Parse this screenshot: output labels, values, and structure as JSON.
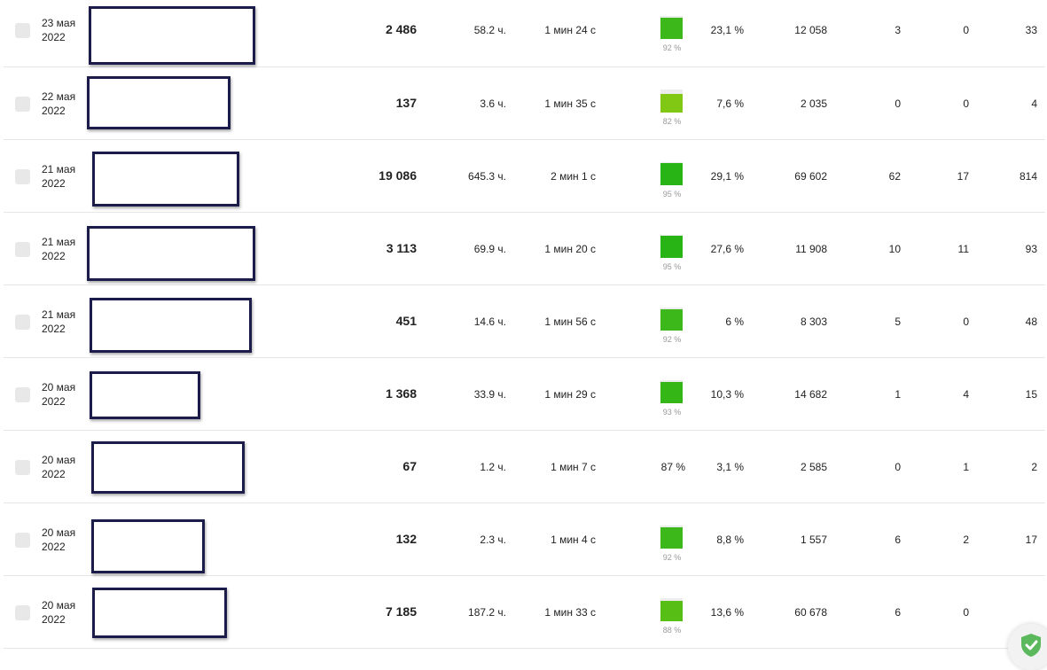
{
  "rows": [
    {
      "date_day": "23 мая",
      "date_year": "2022",
      "views": "2 486",
      "hours": "58.2 ч.",
      "avg": "1 мин 24 с",
      "quality_value": 92,
      "quality_label": "92 %",
      "quality_color": "#3db81a",
      "ctr": "23,1 %",
      "impressions": "12 058",
      "col_a": "3",
      "col_b": "0",
      "col_c": "33"
    },
    {
      "date_day": "22 мая",
      "date_year": "2022",
      "views": "137",
      "hours": "3.6 ч.",
      "avg": "1 мин 35 с",
      "quality_value": 82,
      "quality_label": "82 %",
      "quality_color": "#80c814",
      "ctr": "7,6 %",
      "impressions": "2 035",
      "col_a": "0",
      "col_b": "0",
      "col_c": "4"
    },
    {
      "date_day": "21 мая",
      "date_year": "2022",
      "views": "19 086",
      "hours": "645.3 ч.",
      "avg": "2 мин 1 с",
      "quality_value": 95,
      "quality_label": "95 %",
      "quality_color": "#27b414",
      "ctr": "29,1 %",
      "impressions": "69 602",
      "col_a": "62",
      "col_b": "17",
      "col_c": "814"
    },
    {
      "date_day": "21 мая",
      "date_year": "2022",
      "views": "3 113",
      "hours": "69.9 ч.",
      "avg": "1 мин 20 с",
      "quality_value": 95,
      "quality_label": "95 %",
      "quality_color": "#27b414",
      "ctr": "27,6 %",
      "impressions": "11 908",
      "col_a": "10",
      "col_b": "11",
      "col_c": "93"
    },
    {
      "date_day": "21 мая",
      "date_year": "2022",
      "views": "451",
      "hours": "14.6 ч.",
      "avg": "1 мин 56 с",
      "quality_value": 92,
      "quality_label": "92 %",
      "quality_color": "#3db81a",
      "ctr": "6 %",
      "impressions": "8 303",
      "col_a": "5",
      "col_b": "0",
      "col_c": "48"
    },
    {
      "date_day": "20 мая",
      "date_year": "2022",
      "views": "1 368",
      "hours": "33.9 ч.",
      "avg": "1 мин 29 с",
      "quality_value": 93,
      "quality_label": "93 %",
      "quality_color": "#34b617",
      "ctr": "10,3 %",
      "impressions": "14 682",
      "col_a": "1",
      "col_b": "4",
      "col_c": "15"
    },
    {
      "date_day": "20 мая",
      "date_year": "2022",
      "views": "67",
      "hours": "1.2 ч.",
      "avg": "1 мин 7 с",
      "quality_value": 87,
      "quality_label": "87 %",
      "quality_color": "",
      "ctr": "3,1 %",
      "impressions": "2 585",
      "col_a": "0",
      "col_b": "1",
      "col_c": "2"
    },
    {
      "date_day": "20 мая",
      "date_year": "2022",
      "views": "132",
      "hours": "2.3 ч.",
      "avg": "1 мин 4 с",
      "quality_value": 92,
      "quality_label": "92 %",
      "quality_color": "#3db81a",
      "ctr": "8,8 %",
      "impressions": "1 557",
      "col_a": "6",
      "col_b": "2",
      "col_c": "17"
    },
    {
      "date_day": "20 мая",
      "date_year": "2022",
      "views": "7 185",
      "hours": "187.2 ч.",
      "avg": "1 мин 33 с",
      "quality_value": 88,
      "quality_label": "88 %",
      "quality_color": "#57be16",
      "ctr": "13,6 %",
      "impressions": "60 678",
      "col_a": "6",
      "col_b": "0",
      "col_c": ""
    }
  ],
  "colors": {
    "thumb_border": "#1c1c4a",
    "checkbox": "#e8e8e8",
    "shield_green": "#4caf50"
  },
  "icons": {
    "shield": "shield-check-icon"
  }
}
